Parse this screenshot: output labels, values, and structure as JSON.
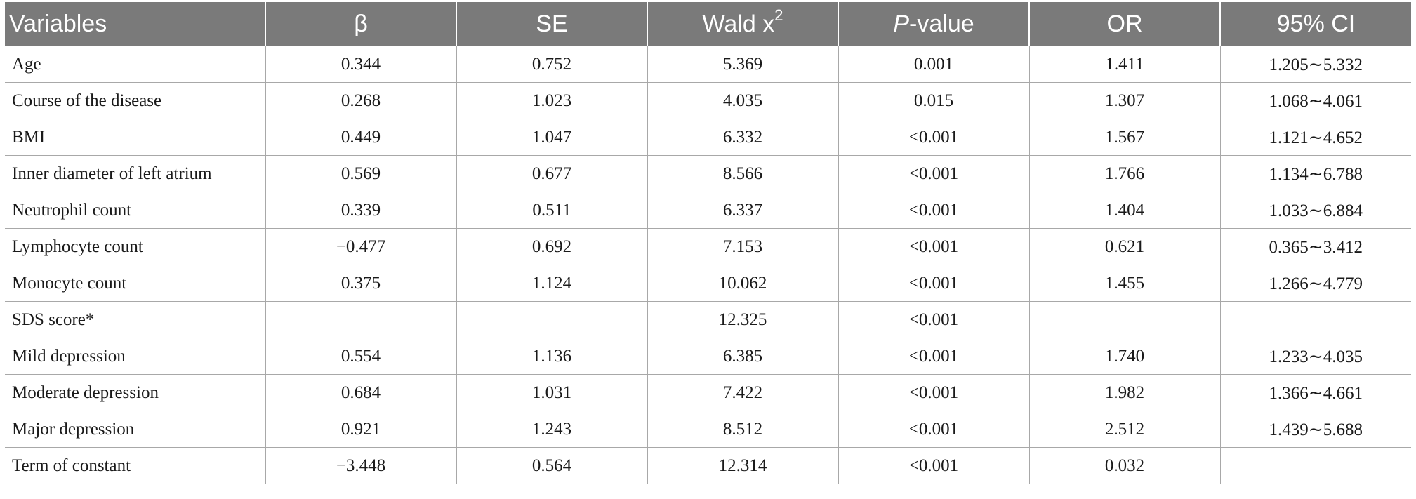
{
  "table": {
    "headers": {
      "variables": "Variables",
      "beta": "β",
      "se": "SE",
      "wald": "Wald x",
      "wald_sup": "2",
      "p_italic": "P",
      "p_rest": "-value",
      "or": "OR",
      "ci": "95% CI"
    },
    "rows": [
      {
        "variable": "Age",
        "beta": "0.344",
        "se": "0.752",
        "wald": "5.369",
        "p": "0.001",
        "or": "1.411",
        "ci": "1.205∼5.332"
      },
      {
        "variable": "Course of the disease",
        "beta": "0.268",
        "se": "1.023",
        "wald": "4.035",
        "p": "0.015",
        "or": "1.307",
        "ci": "1.068∼4.061"
      },
      {
        "variable": "BMI",
        "beta": "0.449",
        "se": "1.047",
        "wald": "6.332",
        "p": "<0.001",
        "or": "1.567",
        "ci": "1.121∼4.652"
      },
      {
        "variable": "Inner diameter of left atrium",
        "beta": "0.569",
        "se": "0.677",
        "wald": "8.566",
        "p": "<0.001",
        "or": "1.766",
        "ci": "1.134∼6.788"
      },
      {
        "variable": "Neutrophil count",
        "beta": "0.339",
        "se": "0.511",
        "wald": "6.337",
        "p": "<0.001",
        "or": "1.404",
        "ci": "1.033∼6.884"
      },
      {
        "variable": "Lymphocyte count",
        "beta": "−0.477",
        "se": "0.692",
        "wald": "7.153",
        "p": "<0.001",
        "or": "0.621",
        "ci": "0.365∼3.412"
      },
      {
        "variable": "Monocyte count",
        "beta": "0.375",
        "se": "1.124",
        "wald": "10.062",
        "p": "<0.001",
        "or": "1.455",
        "ci": "1.266∼4.779"
      },
      {
        "variable": "SDS score*",
        "beta": "",
        "se": "",
        "wald": "12.325",
        "p": "<0.001",
        "or": "",
        "ci": ""
      },
      {
        "variable": "Mild depression",
        "beta": "0.554",
        "se": "1.136",
        "wald": "6.385",
        "p": "<0.001",
        "or": "1.740",
        "ci": "1.233∼4.035"
      },
      {
        "variable": "Moderate depression",
        "beta": "0.684",
        "se": "1.031",
        "wald": "7.422",
        "p": "<0.001",
        "or": "1.982",
        "ci": "1.366∼4.661"
      },
      {
        "variable": "Major depression",
        "beta": "0.921",
        "se": "1.243",
        "wald": "8.512",
        "p": "<0.001",
        "or": "2.512",
        "ci": "1.439∼5.688"
      },
      {
        "variable": "Term of constant",
        "beta": "−3.448",
        "se": "0.564",
        "wald": "12.314",
        "p": "<0.001",
        "or": "0.032",
        "ci": ""
      }
    ]
  },
  "colors": {
    "header_bg": "#7a7a7a",
    "header_text": "#ffffff",
    "grid": "#a8a8a8"
  }
}
